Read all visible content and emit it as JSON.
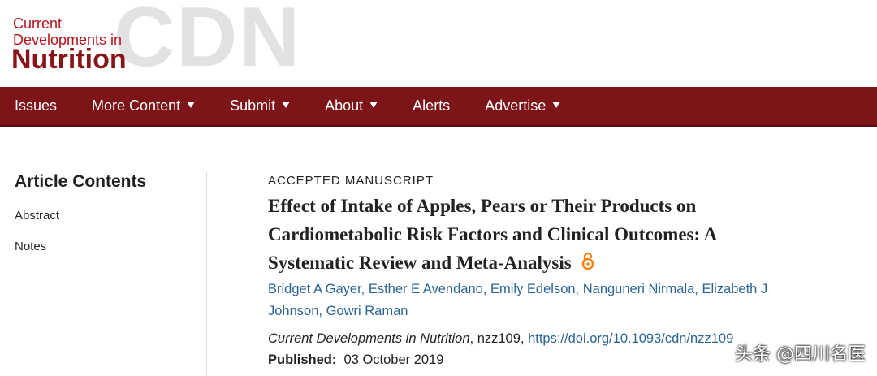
{
  "header": {
    "logo_lines": [
      "Current",
      "Developments in",
      "Nutrition"
    ],
    "logo_watermark": "CDN"
  },
  "nav": {
    "items": [
      "Issues",
      "More Content",
      "Submit",
      "About",
      "Alerts",
      "Advertise"
    ]
  },
  "sidebar": {
    "title": "Article Contents",
    "links": [
      "Abstract",
      "Notes"
    ]
  },
  "article": {
    "label": "ACCEPTED MANUSCRIPT",
    "title": "Effect of Intake of Apples, Pears or Their Products on Cardiometabolic Risk Factors and Clinical Outcomes: A Systematic Review and Meta-Analysis",
    "authors": [
      "Bridget A Gayer",
      "Esther E Avendano",
      "Emily Edelson",
      "Nanguneri Nirmala",
      "Elizabeth J Johnson",
      "Gowri Raman"
    ],
    "author_separator": ",",
    "citation": {
      "journal": "Current Developments in Nutrition",
      "article_id": ", nzz109, ",
      "doi": "https://doi.org/10.1093/cdn/nzz109"
    },
    "published_label": "Published:",
    "published_date": "03 October 2019"
  },
  "watermark": "头条 @四川名医"
}
